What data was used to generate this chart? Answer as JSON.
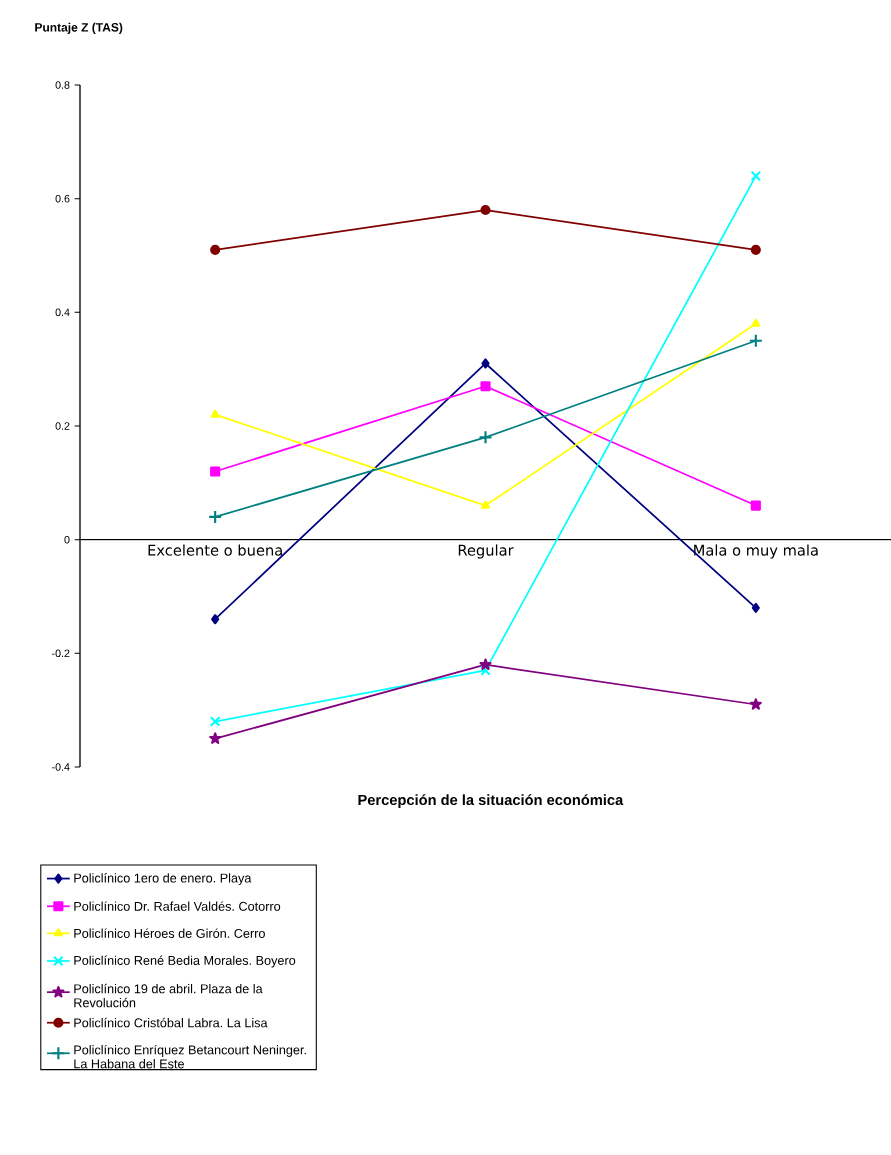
{
  "chart_data": {
    "type": "line",
    "xlabel": "Percepción de la situación económica",
    "ylabel": "Puntaje Z (TAS)",
    "categories": [
      "Excelente o buena",
      "Regular",
      "Mala o muy mala"
    ],
    "ylim": [
      -0.4,
      0.8
    ],
    "yticks": [
      -0.4,
      -0.2,
      0,
      0.2,
      0.4,
      0.6,
      0.8
    ],
    "grid": false,
    "legend": "bottom",
    "series": [
      {
        "name": "Policlínico 1ero de enero. Playa",
        "color": "#000080",
        "marker": "diamond",
        "values": [
          -0.14,
          0.31,
          -0.12
        ]
      },
      {
        "name": "Policlínico Dr. Rafael Valdés. Cotorro",
        "color": "#ff00ff",
        "marker": "square",
        "values": [
          0.12,
          0.27,
          0.06
        ]
      },
      {
        "name": "Policlínico Héroes de Girón. Cerro",
        "color": "#ffff00",
        "marker": "triangle",
        "values": [
          0.22,
          0.06,
          0.38
        ]
      },
      {
        "name": "Policlínico René Bedia Morales. Boyero",
        "color": "#00ffff",
        "marker": "cross",
        "values": [
          -0.32,
          -0.23,
          0.64
        ]
      },
      {
        "name": "Policlínico 19 de abril. Plaza de la Revolución",
        "color": "#800080",
        "marker": "star",
        "values": [
          -0.35,
          -0.22,
          -0.29
        ]
      },
      {
        "name": "Policlínico Cristóbal Labra. La Lisa",
        "color": "#800000",
        "marker": "circle",
        "values": [
          0.51,
          0.58,
          0.51
        ]
      },
      {
        "name": "Policlínico Enríquez Betancourt Neninger. La Habana del Este",
        "color": "#008080",
        "marker": "plus",
        "values": [
          0.04,
          0.18,
          0.35
        ]
      }
    ]
  }
}
